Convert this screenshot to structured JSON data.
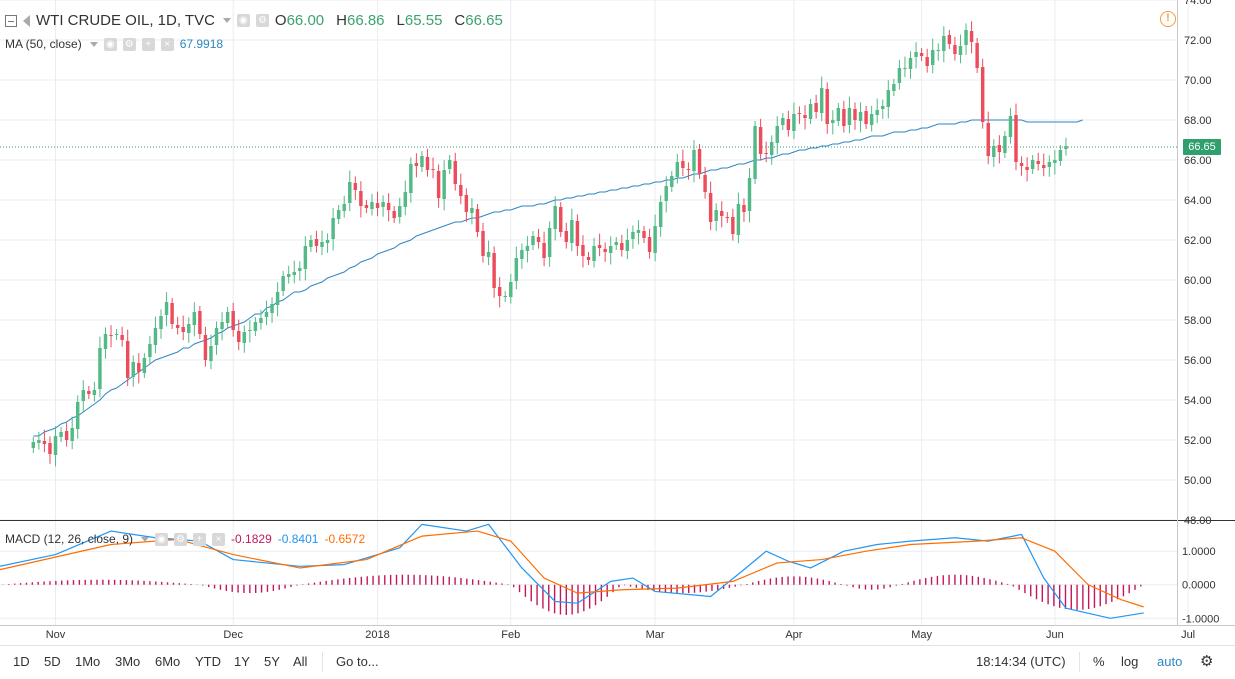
{
  "legend": {
    "title": "WTI CRUDE OIL, 1D, TVC",
    "open_label": "O",
    "open": "66.00",
    "high_label": "H",
    "high": "66.86",
    "low_label": "L",
    "low": "65.55",
    "close_label": "C",
    "close": "66.65",
    "ma_label": "MA (50, close)",
    "ma_value": "67.9918",
    "macd_label": "MACD (12, 26, close, 9)",
    "macd_hist": "-0.1829",
    "macd_line": "-0.8401",
    "macd_signal": "-0.6572"
  },
  "price_tag": "66.65",
  "toolbar": {
    "ranges": [
      "1D",
      "5D",
      "1Mo",
      "3Mo",
      "6Mo",
      "YTD",
      "1Y",
      "5Y",
      "All"
    ],
    "goto_label": "Go to...",
    "clock": "18:14:34 (UTC)",
    "percent_label": "%",
    "log_label": "log",
    "auto_label": "auto"
  },
  "colors": {
    "up": "#53b987",
    "down": "#eb4d5c",
    "ma": "#2e86c1",
    "macd": "#2196f3",
    "signal": "#ff6d00",
    "hist": "#c2185b",
    "grid": "#e9edf2"
  },
  "chart_data": [
    {
      "type": "candlestick",
      "title": "WTI CRUDE OIL, 1D, TVC",
      "x_tick_labels": [
        "Nov",
        "Dec",
        "2018",
        "Feb",
        "Mar",
        "Apr",
        "May",
        "Jun",
        "Jul"
      ],
      "y_tick_labels": [
        "48.00",
        "50.00",
        "52.00",
        "54.00",
        "56.00",
        "58.00",
        "60.00",
        "62.00",
        "64.00",
        "66.00",
        "68.00",
        "70.00",
        "72.00",
        "74.00"
      ],
      "ylim": [
        48,
        74
      ],
      "xlim_index": [
        -6,
        206
      ],
      "x_tick_index": [
        4,
        36,
        62,
        86,
        112,
        137,
        160,
        184,
        208
      ],
      "last_price": 66.65,
      "closes": [
        51.9,
        52.0,
        51.8,
        51.3,
        52.2,
        52.4,
        52.0,
        52.6,
        53.9,
        54.5,
        54.3,
        54.5,
        56.6,
        57.3,
        57.2,
        57.3,
        57.0,
        55.1,
        55.9,
        55.4,
        56.1,
        56.8,
        57.6,
        58.2,
        58.9,
        57.8,
        57.6,
        57.4,
        57.8,
        58.4,
        57.3,
        56.0,
        56.7,
        57.6,
        57.9,
        58.4,
        57.5,
        56.9,
        57.4,
        57.5,
        57.9,
        58.1,
        58.4,
        58.8,
        59.4,
        60.2,
        60.3,
        60.4,
        60.6,
        61.7,
        62.0,
        61.7,
        61.9,
        62.0,
        63.1,
        63.5,
        63.8,
        64.9,
        64.5,
        63.7,
        63.6,
        63.9,
        63.6,
        63.9,
        63.5,
        63.1,
        63.7,
        64.4,
        65.8,
        65.7,
        66.2,
        65.5,
        65.5,
        64.1,
        65.5,
        66.0,
        64.8,
        64.2,
        63.4,
        63.6,
        62.4,
        61.2,
        61.4,
        59.6,
        59.2,
        59.2,
        59.9,
        61.1,
        61.5,
        61.7,
        62.2,
        61.9,
        61.1,
        62.6,
        63.7,
        62.4,
        61.9,
        63.0,
        61.7,
        61.2,
        61.0,
        61.7,
        61.6,
        61.4,
        61.7,
        61.9,
        61.5,
        62.0,
        62.4,
        62.5,
        62.1,
        61.4,
        62.7,
        63.9,
        64.7,
        65.2,
        65.9,
        65.6,
        65.5,
        66.5,
        65.3,
        64.4,
        62.9,
        63.5,
        63.2,
        63.1,
        62.3,
        63.8,
        63.4,
        65.1,
        67.7,
        66.3,
        66.3,
        66.9,
        67.7,
        68.1,
        67.5,
        68.3,
        68.3,
        68.1,
        68.8,
        68.4,
        69.6,
        67.8,
        68.0,
        68.6,
        67.7,
        68.6,
        68.0,
        68.4,
        67.8,
        68.3,
        68.5,
        68.7,
        69.5,
        69.8,
        70.6,
        70.6,
        71.1,
        71.4,
        71.2,
        70.7,
        71.5,
        71.5,
        72.2,
        71.8,
        71.3,
        71.7,
        72.5,
        71.9,
        70.6,
        67.9,
        66.2,
        66.7,
        66.4,
        67.2,
        68.2,
        65.9,
        65.7,
        65.5,
        66.0,
        65.8,
        65.6,
        65.9,
        66.0,
        66.5,
        66.7
      ],
      "ma50": [
        52.2,
        52.2,
        52.4,
        52.5,
        52.6,
        52.8,
        52.9,
        53.1,
        53.2,
        53.4,
        53.6,
        53.8,
        54.0,
        54.3,
        54.5,
        54.6,
        54.8,
        55.0,
        55.2,
        55.4,
        55.6,
        55.8,
        56.0,
        56.1,
        56.2,
        56.3,
        56.4,
        56.6,
        56.6,
        56.8,
        56.9,
        57.0,
        57.1,
        57.3,
        57.4,
        57.6,
        57.7,
        57.8,
        57.9,
        58.1,
        58.3,
        58.3,
        58.6,
        58.7,
        58.9,
        59.0,
        59.2,
        59.4,
        59.4,
        59.5,
        59.7,
        59.8,
        59.9,
        60.1,
        60.2,
        60.3,
        60.4,
        60.6,
        60.7,
        60.9,
        61.0,
        61.1,
        61.3,
        61.4,
        61.5,
        61.6,
        61.8,
        61.9,
        62.0,
        62.2,
        62.3,
        62.4,
        62.5,
        62.6,
        62.7,
        62.8,
        62.9,
        62.9,
        63.0,
        63.1,
        63.1,
        63.2,
        63.3,
        63.4,
        63.4,
        63.5,
        63.5,
        63.6,
        63.7,
        63.7,
        63.7,
        63.8,
        63.8,
        63.9,
        64.0,
        64.0,
        64.1,
        64.1,
        64.2,
        64.2,
        64.3,
        64.3,
        64.4,
        64.4,
        64.5,
        64.5,
        64.6,
        64.6,
        64.7,
        64.7,
        64.8,
        64.8,
        64.9,
        64.9,
        65.0,
        65.0,
        65.1,
        65.1,
        65.2,
        65.3,
        65.3,
        65.4,
        65.5,
        65.5,
        65.6,
        65.6,
        65.7,
        65.8,
        65.8,
        65.9,
        66.0,
        66.0,
        66.1,
        66.1,
        66.2,
        66.3,
        66.3,
        66.4,
        66.5,
        66.5,
        66.6,
        66.6,
        66.7,
        66.7,
        66.8,
        66.8,
        66.9,
        66.9,
        67.0,
        67.0,
        67.1,
        67.2,
        67.2,
        67.2,
        67.3,
        67.4,
        67.4,
        67.4,
        67.5,
        67.5,
        67.6,
        67.6,
        67.7,
        67.8,
        67.8,
        67.8,
        67.8,
        67.9,
        67.9,
        68.0,
        68.0,
        68.0,
        68.0,
        68.0,
        68.0,
        68.0,
        68.0,
        68.0,
        68.0,
        67.9,
        67.9,
        67.9,
        67.9,
        67.9,
        67.9,
        67.9,
        67.9,
        67.9,
        67.9,
        68.0
      ]
    },
    {
      "type": "line",
      "title": "MACD (12, 26, close, 9)",
      "y_tick_labels": [
        "-1.0000",
        "0.0000",
        "1.0000"
      ],
      "ylim": [
        -1.2,
        1.9
      ],
      "series": [
        {
          "name": "MACD",
          "points": [
            [
              -6,
              0.55
            ],
            [
              4,
              0.9
            ],
            [
              14,
              1.6
            ],
            [
              22,
              1.4
            ],
            [
              30,
              1.3
            ],
            [
              36,
              0.75
            ],
            [
              48,
              0.55
            ],
            [
              56,
              0.6
            ],
            [
              66,
              1.1
            ],
            [
              70,
              1.8
            ],
            [
              78,
              1.6
            ],
            [
              82,
              1.8
            ],
            [
              88,
              0.5
            ],
            [
              94,
              -0.5
            ],
            [
              98,
              -0.55
            ],
            [
              104,
              0.1
            ],
            [
              108,
              0.2
            ],
            [
              112,
              -0.2
            ],
            [
              122,
              -0.35
            ],
            [
              128,
              0.45
            ],
            [
              132,
              1.0
            ],
            [
              136,
              0.7
            ],
            [
              140,
              0.5
            ],
            [
              146,
              1.0
            ],
            [
              152,
              1.2
            ],
            [
              158,
              1.3
            ],
            [
              166,
              1.4
            ],
            [
              172,
              1.3
            ],
            [
              178,
              1.5
            ],
            [
              182,
              0.2
            ],
            [
              186,
              -0.7
            ],
            [
              194,
              -1.0
            ],
            [
              200,
              -0.84
            ]
          ]
        },
        {
          "name": "Signal",
          "points": [
            [
              -6,
              0.45
            ],
            [
              14,
              1.2
            ],
            [
              26,
              1.35
            ],
            [
              36,
              0.9
            ],
            [
              48,
              0.5
            ],
            [
              60,
              0.75
            ],
            [
              70,
              1.45
            ],
            [
              80,
              1.6
            ],
            [
              86,
              1.3
            ],
            [
              92,
              0.2
            ],
            [
              98,
              -0.25
            ],
            [
              106,
              -0.15
            ],
            [
              116,
              -0.1
            ],
            [
              126,
              0.1
            ],
            [
              134,
              0.65
            ],
            [
              142,
              0.75
            ],
            [
              150,
              1.0
            ],
            [
              158,
              1.2
            ],
            [
              170,
              1.3
            ],
            [
              178,
              1.4
            ],
            [
              184,
              1.0
            ],
            [
              190,
              0.0
            ],
            [
              196,
              -0.45
            ],
            [
              200,
              -0.66
            ]
          ]
        }
      ],
      "histogram": [
        {
          "x_range": [
            -6,
            30
          ],
          "bars": 34,
          "peak": 0.15
        },
        {
          "x_range": [
            30,
            48
          ],
          "bars": 17,
          "peak": -0.25
        },
        {
          "x_range": [
            48,
            86
          ],
          "bars": 36,
          "peak": 0.3
        },
        {
          "x_range": [
            86,
            106
          ],
          "bars": 19,
          "peak": -0.9
        },
        {
          "x_range": [
            106,
            128
          ],
          "bars": 21,
          "peak": -0.25
        },
        {
          "x_range": [
            128,
            146
          ],
          "bars": 17,
          "peak": 0.25
        },
        {
          "x_range": [
            146,
            156
          ],
          "bars": 9,
          "peak": -0.15
        },
        {
          "x_range": [
            156,
            176
          ],
          "bars": 19,
          "peak": 0.3
        },
        {
          "x_range": [
            176,
            200
          ],
          "bars": 23,
          "peak": -0.75
        }
      ]
    }
  ]
}
